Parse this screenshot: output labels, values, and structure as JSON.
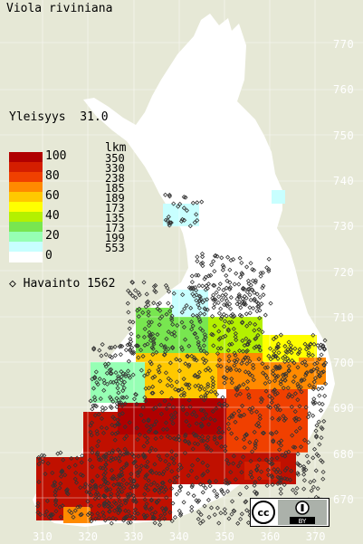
{
  "title": "Viola riviniana",
  "frequency": {
    "label": "Yleisyys",
    "value": "31.0"
  },
  "legend": {
    "count_header": "lkm",
    "bins": [
      {
        "label": "100",
        "color": "#b00000",
        "count": "350"
      },
      {
        "label": "",
        "color": "#d41e00",
        "count": "330"
      },
      {
        "label": "80",
        "color": "#f04000",
        "count": "238"
      },
      {
        "label": "",
        "color": "#ff8a00",
        "count": "185"
      },
      {
        "label": "60",
        "color": "#ffc800",
        "count": "189"
      },
      {
        "label": "",
        "color": "#ffff00",
        "count": "173"
      },
      {
        "label": "40",
        "color": "#b4f000",
        "count": "135"
      },
      {
        "label": "",
        "color": "#78e650",
        "count": "173"
      },
      {
        "label": "20",
        "color": "#96ffb4",
        "count": "199"
      },
      {
        "label": "",
        "color": "#c8ffff",
        "count": "553"
      },
      {
        "label": "0",
        "color": "#ffffff",
        "count": ""
      }
    ],
    "observation": {
      "symbol": "◇",
      "label": "Havainto",
      "count": "1562"
    }
  },
  "grid": {
    "y_labels": [
      "770",
      "760",
      "750",
      "740",
      "730",
      "720",
      "710",
      "700",
      "690",
      "680",
      "670"
    ],
    "x_labels": [
      "310",
      "320",
      "330",
      "340",
      "350",
      "360",
      "370"
    ]
  },
  "license": {
    "text": "BY"
  },
  "colors": {
    "background": "#e6e8d6",
    "country": "#ffffff",
    "grid_line": "#ffffff"
  }
}
